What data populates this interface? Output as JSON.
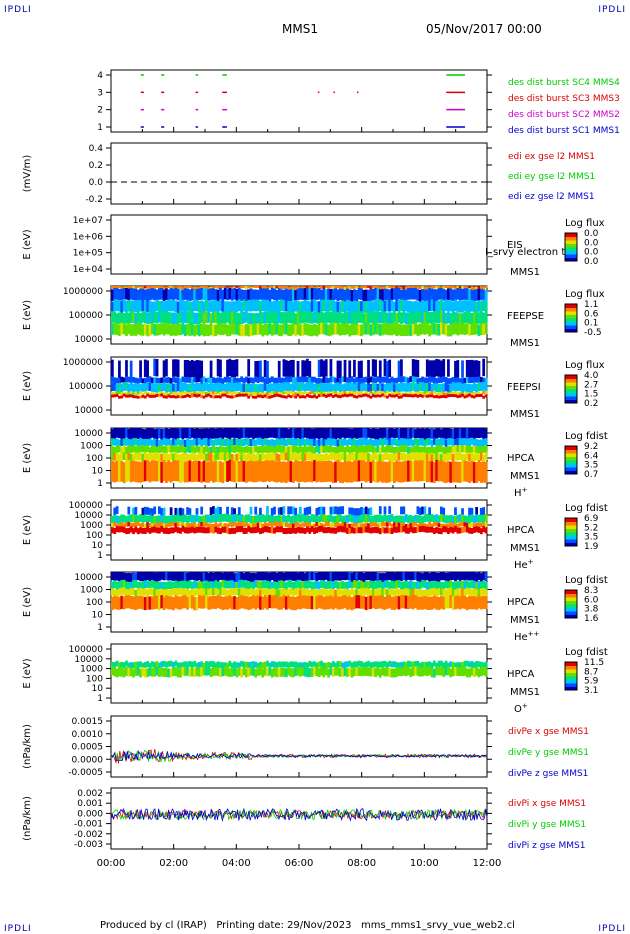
{
  "corner_label": "IPDLI",
  "header": {
    "spacecraft": "MMS1",
    "datetime": "05/Nov/2017 00:00"
  },
  "footer": {
    "text": "Produced by cl (IRAP)   Printing date: 29/Nov/2023   mms_mms1_srvy_vue_web2.cl"
  },
  "time_axis": {
    "start_hour": 0,
    "end_hour": 12,
    "tick_labels": [
      "00:00",
      "02:00",
      "04:00",
      "06:00",
      "08:00",
      "10:00",
      "12:00"
    ]
  },
  "colors": {
    "red": "#dd0000",
    "green": "#00cc00",
    "blue": "#0000cc",
    "magenta": "#cc00cc",
    "colormap": [
      "#0000aa",
      "#0050ff",
      "#00c0ff",
      "#00e080",
      "#60e000",
      "#e0e000",
      "#ff8000",
      "#e00000"
    ]
  },
  "chart_data": [
    {
      "id": "burst",
      "type": "scatter",
      "ylabel": "",
      "y_ticks": [
        "4",
        "3",
        "2",
        "1"
      ],
      "ylim": [
        0.5,
        4.5
      ],
      "series": [
        {
          "name": "des dist burst SC1 MMS1",
          "color": "#0000cc",
          "y": 1,
          "intervals": [
            [
              0.95,
              1.05
            ],
            [
              1.6,
              1.7
            ],
            [
              2.7,
              2.78
            ],
            [
              3.55,
              3.7
            ],
            [
              10.7,
              11.3
            ]
          ]
        },
        {
          "name": "des dist burst SC2 MMS2",
          "color": "#cc00cc",
          "y": 2,
          "intervals": [
            [
              0.95,
              1.05
            ],
            [
              1.6,
              1.7
            ],
            [
              2.7,
              2.78
            ],
            [
              3.55,
              3.7
            ],
            [
              10.7,
              11.3
            ]
          ]
        },
        {
          "name": "des dist burst SC3 MMS3",
          "color": "#dd0000",
          "y": 3,
          "intervals": [
            [
              0.95,
              1.05
            ],
            [
              1.6,
              1.7
            ],
            [
              2.7,
              2.78
            ],
            [
              3.55,
              3.7
            ],
            [
              6.6,
              6.65
            ],
            [
              7.1,
              7.15
            ],
            [
              7.85,
              7.9
            ],
            [
              10.7,
              11.3
            ]
          ]
        },
        {
          "name": "des dist burst SC4 MMS4",
          "color": "#00cc00",
          "y": 4,
          "intervals": [
            [
              0.95,
              1.05
            ],
            [
              1.6,
              1.7
            ],
            [
              2.7,
              2.78
            ],
            [
              3.55,
              3.7
            ],
            [
              10.7,
              11.3
            ]
          ]
        }
      ]
    },
    {
      "id": "edi",
      "type": "line",
      "ylabel": "(mV/m)",
      "y_ticks": [
        "0.4",
        "0.2",
        "0.0",
        "-0.2"
      ],
      "ylim": [
        -0.3,
        0.5
      ],
      "series": [
        {
          "name": "edi ex gse l2 MMS1",
          "color": "#dd0000",
          "values": []
        },
        {
          "name": "edi ey gse l2 MMS1",
          "color": "#00cc00",
          "values": []
        },
        {
          "name": "edi ez gse l2 MMS1",
          "color": "#0000cc",
          "values": []
        }
      ],
      "zero_line": true
    },
    {
      "id": "eis",
      "type": "heatmap",
      "ylabel": "E (eV)",
      "y_ticks": [
        "1e+07",
        "1e+06",
        "1e+05",
        "1e+04"
      ],
      "instrument": [
        "EIS",
        "MMS1"
      ],
      "overlay_text": "I_srvy electron to",
      "colorbar": {
        "title": "Log flux",
        "ticks": [
          "0.0",
          "0.0",
          "0.0",
          "0.0"
        ]
      },
      "empty": true
    },
    {
      "id": "feeps_e",
      "type": "heatmap",
      "ylabel": "E (eV)",
      "y_ticks": [
        "1000000",
        "100000",
        "10000"
      ],
      "instrument": [
        "FEEPSE",
        "MMS1"
      ],
      "colorbar": {
        "title": "Log flux",
        "ticks": [
          "1.1",
          "0.6",
          "0.1",
          "-0.5"
        ]
      },
      "bands": [
        {
          "from": 0.0,
          "to": 0.05,
          "level": 6
        },
        {
          "from": 0.05,
          "to": 0.25,
          "level": 1
        },
        {
          "from": 0.25,
          "to": 0.45,
          "level": 2
        },
        {
          "from": 0.45,
          "to": 0.65,
          "level": 3
        },
        {
          "from": 0.65,
          "to": 0.85,
          "level": 4
        }
      ]
    },
    {
      "id": "feeps_i",
      "type": "heatmap",
      "ylabel": "E (eV)",
      "y_ticks": [
        "1000000",
        "100000",
        "10000"
      ],
      "instrument": [
        "FEEPSI",
        "MMS1"
      ],
      "colorbar": {
        "title": "Log flux",
        "ticks": [
          "4.0",
          "2.7",
          "1.5",
          "0.2"
        ]
      },
      "bands": [
        {
          "from": 0.05,
          "to": 0.35,
          "level": 0,
          "sparse": true
        },
        {
          "from": 0.35,
          "to": 0.45,
          "level": 1
        },
        {
          "from": 0.45,
          "to": 0.6,
          "level": 2
        },
        {
          "from": 0.6,
          "to": 0.65,
          "level": 5
        },
        {
          "from": 0.65,
          "to": 0.7,
          "level": 7
        }
      ]
    },
    {
      "id": "hpca_h",
      "type": "heatmap",
      "ylabel": "E (eV)",
      "y_ticks": [
        "10000",
        "1000",
        "100",
        "10",
        "1"
      ],
      "instrument": [
        "HPCA",
        "MMS1",
        "H+"
      ],
      "colorbar": {
        "title": "Log fdist",
        "ticks": [
          "9.2",
          "6.4",
          "3.5",
          "0.7"
        ]
      },
      "bands": [
        {
          "from": 0.0,
          "to": 0.18,
          "level": 0
        },
        {
          "from": 0.18,
          "to": 0.3,
          "level": 2
        },
        {
          "from": 0.3,
          "to": 0.42,
          "level": 4
        },
        {
          "from": 0.42,
          "to": 0.55,
          "level": 5
        },
        {
          "from": 0.55,
          "to": 0.9,
          "level": 6
        }
      ]
    },
    {
      "id": "hpca_he",
      "type": "heatmap",
      "ylabel": "E (eV)",
      "y_ticks": [
        "100000",
        "10000",
        "1000",
        "100",
        "10",
        "1"
      ],
      "instrument": [
        "HPCA",
        "MMS1",
        "He+"
      ],
      "colorbar": {
        "title": "Log fdist",
        "ticks": [
          "6.9",
          "5.2",
          "3.5",
          "1.9"
        ]
      },
      "bands": [
        {
          "from": 0.12,
          "to": 0.25,
          "level": 1,
          "sparse": true
        },
        {
          "from": 0.25,
          "to": 0.38,
          "level": 3
        },
        {
          "from": 0.38,
          "to": 0.45,
          "level": 6
        },
        {
          "from": 0.45,
          "to": 0.55,
          "level": 7
        }
      ]
    },
    {
      "id": "hpca_hepp",
      "type": "heatmap",
      "ylabel": "E (eV)",
      "y_ticks": [
        "10000",
        "1000",
        "100",
        "10",
        "1"
      ],
      "instrument": [
        "HPCA",
        "MMS1",
        "He++"
      ],
      "colorbar": {
        "title": "Log fdist",
        "ticks": [
          "8.3",
          "6.0",
          "3.8",
          "1.6"
        ]
      },
      "bands": [
        {
          "from": 0.0,
          "to": 0.15,
          "level": 0
        },
        {
          "from": 0.15,
          "to": 0.28,
          "level": 3
        },
        {
          "from": 0.28,
          "to": 0.4,
          "level": 5
        },
        {
          "from": 0.4,
          "to": 0.62,
          "level": 6
        }
      ]
    },
    {
      "id": "hpca_o",
      "type": "heatmap",
      "ylabel": "E (eV)",
      "y_ticks": [
        "100000",
        "10000",
        "1000",
        "100",
        "10",
        "1"
      ],
      "instrument": [
        "HPCA",
        "MMS1",
        "O+"
      ],
      "colorbar": {
        "title": "Log fdist",
        "ticks": [
          "11.5",
          "8.7",
          "5.9",
          "3.1"
        ]
      },
      "bands": [
        {
          "from": 0.3,
          "to": 0.4,
          "level": 3
        },
        {
          "from": 0.4,
          "to": 0.55,
          "level": 4
        }
      ]
    },
    {
      "id": "divpe",
      "type": "line",
      "ylabel": "(nPa/km)",
      "y_ticks": [
        "0.0015",
        "0.0010",
        "0.0005",
        "0.0000",
        "-0.0005"
      ],
      "ylim": [
        -0.0009,
        0.0017
      ],
      "series": [
        {
          "name": "divPe x gse MMS1",
          "color": "#dd0000",
          "noise": 8e-05
        },
        {
          "name": "divPe y gse MMS1",
          "color": "#00cc00",
          "noise": 6e-05
        },
        {
          "name": "divPe z gse MMS1",
          "color": "#0000cc",
          "noise": 5e-05
        }
      ]
    },
    {
      "id": "divpi",
      "type": "line",
      "ylabel": "(nPa/km)",
      "y_ticks": [
        "0.002",
        "0.001",
        "0.000",
        "-0.001",
        "-0.002",
        "-0.003"
      ],
      "ylim": [
        -0.0035,
        0.0027
      ],
      "series": [
        {
          "name": "divPi x gse MMS1",
          "color": "#dd0000",
          "noise": 0.0004
        },
        {
          "name": "divPi y gse MMS1",
          "color": "#00cc00",
          "noise": 0.0005
        },
        {
          "name": "divPi z gse MMS1",
          "color": "#0000cc",
          "noise": 0.0006
        }
      ]
    }
  ]
}
